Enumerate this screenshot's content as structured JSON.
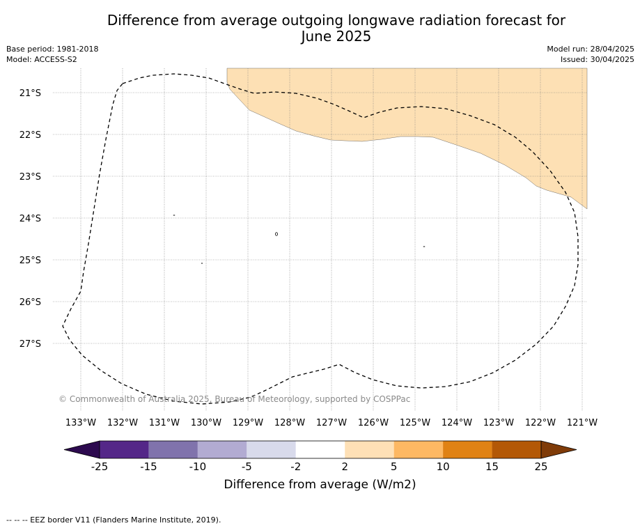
{
  "title": {
    "line1": "Difference from average outgoing longwave radiation forecast for",
    "line2": "June 2025"
  },
  "meta_left": {
    "base_period": "Base period: 1981-2018",
    "model": "Model: ACCESS-S2"
  },
  "meta_right": {
    "model_run": "Model run: 28/04/2025",
    "issued": "Issued: 30/04/2025"
  },
  "map": {
    "lat_labels": [
      "21°S",
      "22°S",
      "23°S",
      "24°S",
      "25°S",
      "26°S",
      "27°S"
    ],
    "lon_labels": [
      "133°W",
      "132°W",
      "131°W",
      "130°W",
      "129°W",
      "128°W",
      "127°W",
      "126°W",
      "125°W",
      "124°W",
      "123°W",
      "122°W",
      "121°W"
    ],
    "copyright": "© Commonwealth of Australia 2025, Bureau of Meteorology, supported by COSPPac",
    "shaded_category": "2 to 5",
    "shaded_color": "#fde0b4",
    "grid": true
  },
  "colorbar": {
    "ticks": [
      "-25",
      "-15",
      "-10",
      "-5",
      "-2",
      "2",
      "5",
      "10",
      "15",
      "25"
    ],
    "colors": [
      "#2d0a4f",
      "#542788",
      "#8073ac",
      "#b2abd2",
      "#d8daeb",
      "#ffffff",
      "#fee0b6",
      "#fdb863",
      "#e08214",
      "#b35806",
      "#7f3b08"
    ],
    "title": "Difference from average (W/m2)"
  },
  "footnote": "--  --  -- EEZ border V11 (Flanders Marine Institute, 2019)."
}
